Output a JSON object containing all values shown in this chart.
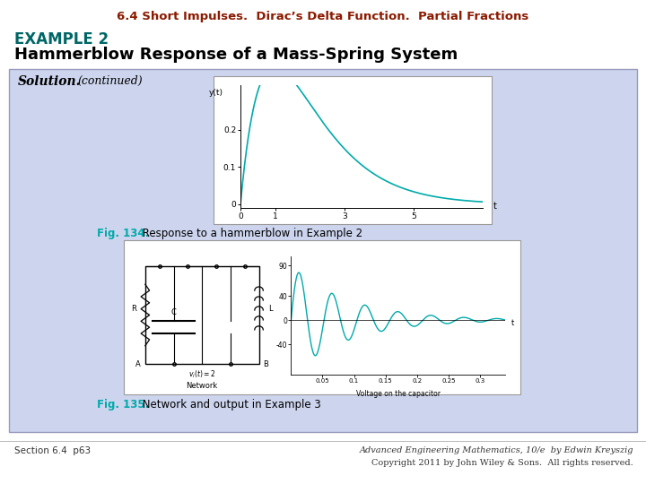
{
  "title_64": "6.4 Short Impulses.  Dirac’s Delta Function.  Partial Fractions",
  "title_64_color": "#8B1A00",
  "example_label": "EXAMPLE 2",
  "example_color": "#006666",
  "subtitle": "Hammerblow Response of a Mass-Spring System",
  "subtitle_color": "#000000",
  "solution_text": "Solution.",
  "continued_text": "(continued)",
  "fig134_label": "Fig. 134.",
  "fig134_label_color": "#00AAAA",
  "fig134_text": " Response to a hammerblow in Example 2",
  "fig135_label": "Fig. 135.",
  "fig135_label_color": "#00AAAA",
  "fig135_text": " Network and output in Example 3",
  "box_bg_color": "#CDD5EE",
  "box_border_color": "#9999BB",
  "footer_left": "Section 6.4  p63",
  "footer_right_line1": "Advanced Engineering Mathematics, 10/e  by Edwin Kreyszig",
  "footer_right_line2": "Copyright 2011 by John Wiley & Sons.  All rights reserved.",
  "background_color": "#FFFFFF",
  "plot1_color": "#00AAAA",
  "plot2_color": "#00AAAA",
  "inner_box_color": "#FFFFFF"
}
